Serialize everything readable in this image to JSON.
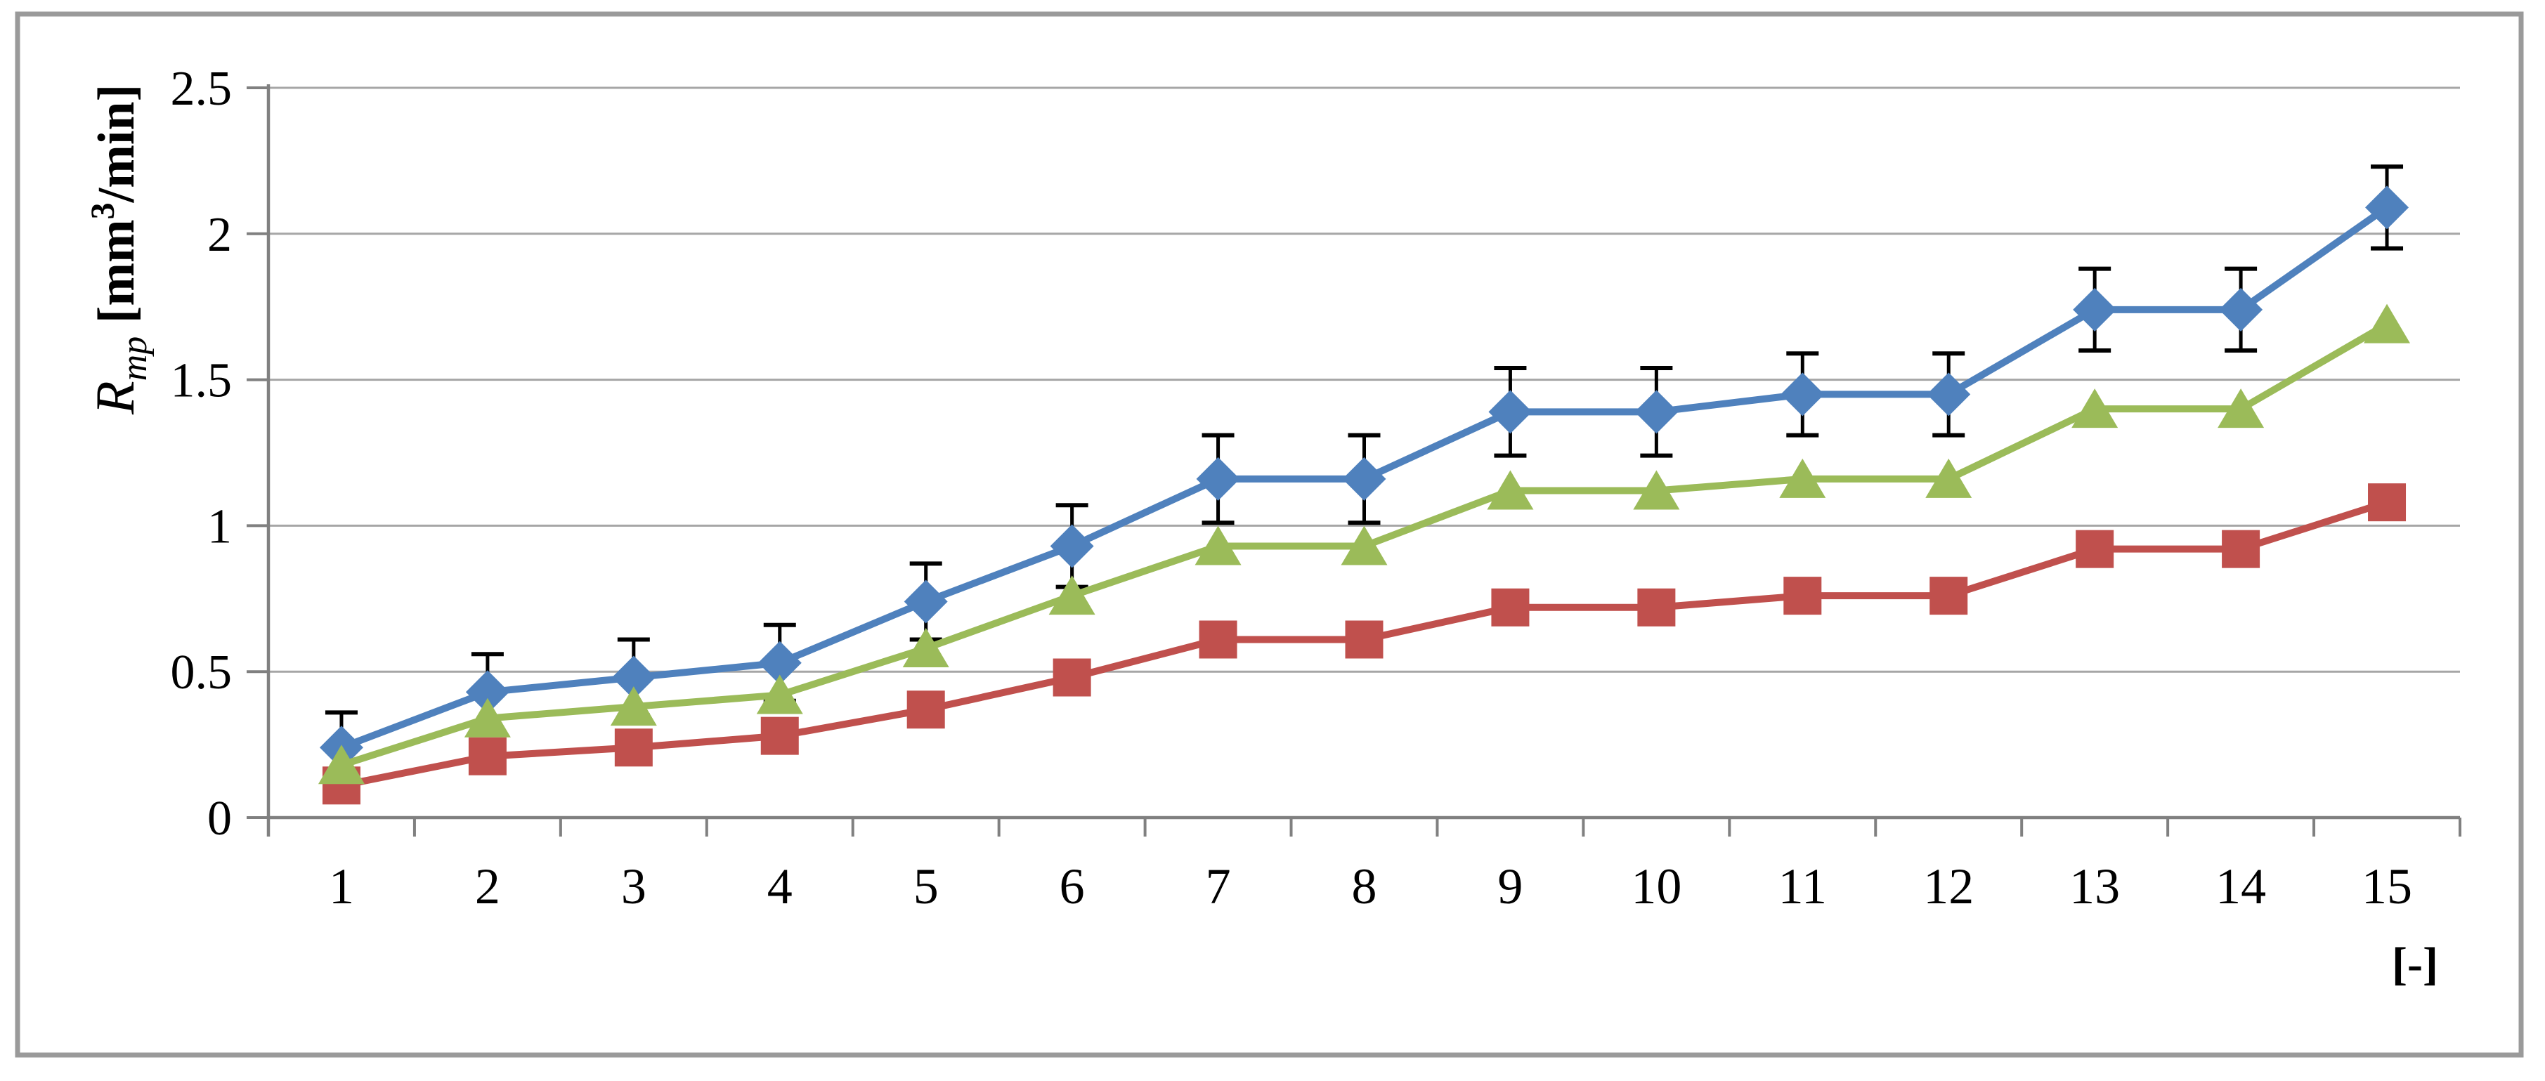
{
  "frame": {
    "background": "#ffffff",
    "border_color": "#9a9a9a"
  },
  "chart_data": {
    "type": "line",
    "title": "",
    "xlabel": "[-]",
    "ylabel": {
      "symbol": "R",
      "subscript": "mp",
      "units_open": "[mm",
      "units_exponent": "3",
      "units_close": "/min]"
    },
    "categories": [
      "1",
      "2",
      "3",
      "4",
      "5",
      "6",
      "7",
      "8",
      "9",
      "10",
      "11",
      "12",
      "13",
      "14",
      "15"
    ],
    "y_ticks": [
      {
        "label": "0",
        "value": 0
      },
      {
        "label": "0.5",
        "value": 0.5
      },
      {
        "label": "1",
        "value": 1
      },
      {
        "label": "1.5",
        "value": 1.5
      },
      {
        "label": "2",
        "value": 2
      },
      {
        "label": "2.5",
        "value": 2.5
      }
    ],
    "ylim": [
      0,
      2.5
    ],
    "grid": "horizontal",
    "legend": "none",
    "axis_color": "#808080",
    "gridline_color": "#a6a6a6",
    "error_bar_color": "#000000",
    "series": [
      {
        "name": "series-1-blue-diamond",
        "marker": "diamond",
        "color": "#4f81bd",
        "values": [
          0.24,
          0.43,
          0.48,
          0.53,
          0.74,
          0.93,
          1.16,
          1.16,
          1.39,
          1.39,
          1.45,
          1.45,
          1.74,
          1.74,
          2.09
        ],
        "error": [
          0.12,
          0.13,
          0.13,
          0.13,
          0.13,
          0.14,
          0.15,
          0.15,
          0.15,
          0.15,
          0.14,
          0.14,
          0.14,
          0.14,
          0.14
        ]
      },
      {
        "name": "series-2-green-triangle",
        "marker": "triangle",
        "color": "#9bbb59",
        "values": [
          0.18,
          0.34,
          0.38,
          0.42,
          0.58,
          0.76,
          0.93,
          0.93,
          1.12,
          1.12,
          1.16,
          1.16,
          1.4,
          1.4,
          1.69
        ]
      },
      {
        "name": "series-3-red-square",
        "marker": "square",
        "color": "#c0504d",
        "values": [
          0.11,
          0.21,
          0.24,
          0.28,
          0.37,
          0.48,
          0.61,
          0.61,
          0.72,
          0.72,
          0.76,
          0.76,
          0.92,
          0.92,
          1.08
        ]
      }
    ]
  }
}
